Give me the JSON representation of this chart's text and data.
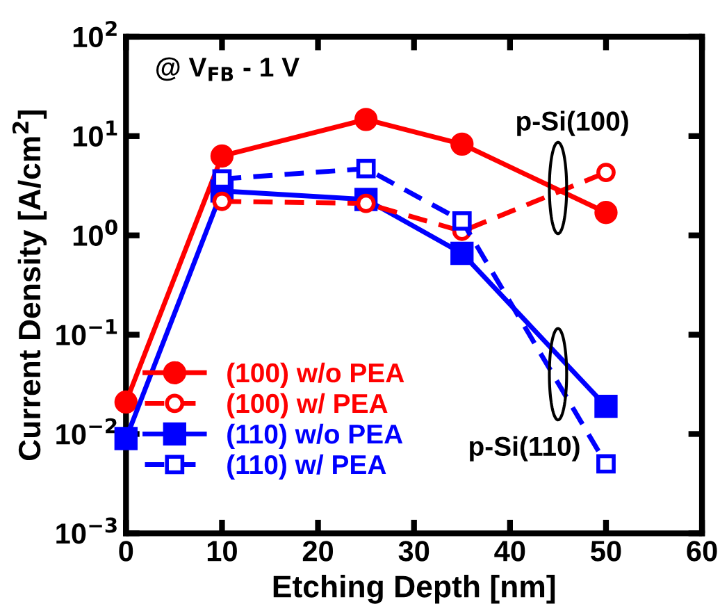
{
  "chart_data": {
    "type": "line",
    "xlabel": "Etching Depth [nm]",
    "ylabel": "Current Density [A/cm$^{2}$]",
    "x": [
      0,
      10,
      25,
      35,
      50
    ],
    "series": [
      {
        "name": "(100) w/o PEA",
        "color": "#ff0000",
        "values": [
          0.021,
          6.3,
          14.7,
          8.3,
          1.7
        ],
        "marker": "circle",
        "line_style": "solid"
      },
      {
        "name": "(100) w/ PEA",
        "color": "#ff0000",
        "x": [
          10,
          25,
          35,
          50
        ],
        "values": [
          2.2,
          2.1,
          1.1,
          4.3
        ],
        "marker": "circle",
        "line_style": "dashed"
      },
      {
        "name": "(110) w/o PEA",
        "color": "#0000ff",
        "values": [
          0.009,
          2.8,
          2.3,
          0.66,
          0.019
        ],
        "marker": "square",
        "line_style": "solid"
      },
      {
        "name": "(110) w/ PEA",
        "color": "#0000ff",
        "x": [
          10,
          25,
          35,
          50
        ],
        "values": [
          3.7,
          4.7,
          1.4,
          0.005
        ],
        "marker": "square",
        "line_style": "dashed"
      }
    ],
    "log": "y",
    "xlim": [
      0,
      60
    ],
    "xticks": [
      0,
      10,
      20,
      30,
      40,
      50,
      60
    ],
    "ylim": [
      0.001,
      100
    ],
    "yticks": [
      {
        "value": 0.001,
        "label": "10$^{−3}$"
      },
      {
        "value": 0.01,
        "label": "10$^{−2}$"
      },
      {
        "value": 0.1,
        "label": "10$^{−1}$"
      },
      {
        "value": 1,
        "label": "10$^{0}$"
      },
      {
        "value": 10,
        "label": "10$^{1}$"
      },
      {
        "value": 100,
        "label": "10$^{2}$"
      }
    ],
    "grid": false,
    "legend": "bottom left",
    "annotations": [
      {
        "text": "@ V$_{FB}$ - 1 V"
      },
      {
        "text": "p-Si(100)",
        "x": 45,
        "y": 3
      },
      {
        "text": "p-Si(110)",
        "x": 45,
        "y": 0.04
      }
    ]
  }
}
